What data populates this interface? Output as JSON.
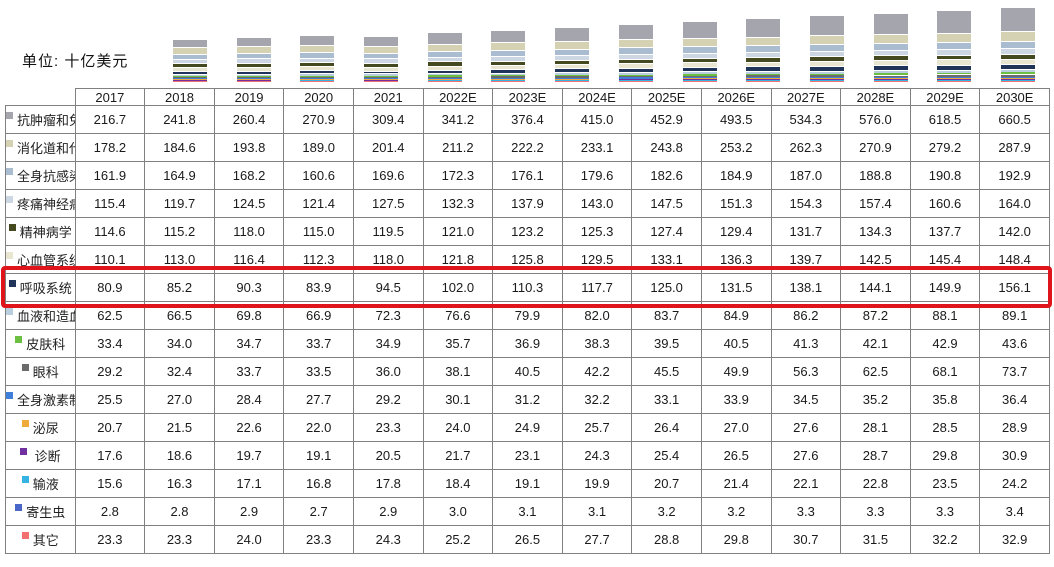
{
  "unit_label": "单位: 十亿美元",
  "highlight": {
    "series": "呼吸系统",
    "color": "#e0151b"
  },
  "chart_data": {
    "type": "bar",
    "stacked": true,
    "title": "",
    "unit": "十亿美元",
    "legend_position": "table-rows-left",
    "x": [
      "2017",
      "2018",
      "2019",
      "2020",
      "2021",
      "2022E",
      "2023E",
      "2024E",
      "2025E",
      "2026E",
      "2027E",
      "2028E",
      "2029E",
      "2030E"
    ],
    "series": [
      {
        "name": "抗肿瘤和免疫调节剂",
        "color": "#a5a5ad",
        "values": [
          216.7,
          241.8,
          260.4,
          270.9,
          309.4,
          341.2,
          376.4,
          415.0,
          452.9,
          493.5,
          534.3,
          576.0,
          618.5,
          660.5
        ]
      },
      {
        "name": "消化道和代谢",
        "color": "#d5d2b3",
        "values": [
          178.2,
          184.6,
          193.8,
          189.0,
          201.4,
          211.2,
          222.2,
          233.1,
          243.8,
          253.2,
          262.3,
          270.9,
          279.2,
          287.9
        ]
      },
      {
        "name": "全身抗感染用药",
        "color": "#a9bcd0",
        "values": [
          161.9,
          164.9,
          168.2,
          160.6,
          169.6,
          172.3,
          176.1,
          179.6,
          182.6,
          184.9,
          187.0,
          188.8,
          190.8,
          192.9
        ]
      },
      {
        "name": "疼痛神经病学",
        "color": "#ccd7e3",
        "values": [
          115.4,
          119.7,
          124.5,
          121.4,
          127.5,
          132.3,
          137.9,
          143.0,
          147.5,
          151.3,
          154.3,
          157.4,
          160.6,
          164.0
        ]
      },
      {
        "name": "精神病学",
        "color": "#45491f",
        "values": [
          114.6,
          115.2,
          118.0,
          115.0,
          119.5,
          121.0,
          123.2,
          125.3,
          127.4,
          129.4,
          131.7,
          134.3,
          137.7,
          142.0
        ]
      },
      {
        "name": "心血管系统",
        "color": "#e8e6d0",
        "values": [
          110.1,
          113.0,
          116.4,
          112.3,
          118.0,
          121.8,
          125.8,
          129.5,
          133.1,
          136.3,
          139.7,
          142.5,
          145.4,
          148.4
        ]
      },
      {
        "name": "呼吸系统",
        "color": "#1f3458",
        "values": [
          80.9,
          85.2,
          90.3,
          83.9,
          94.5,
          102.0,
          110.3,
          117.7,
          125.0,
          131.5,
          138.1,
          144.1,
          149.9,
          156.1
        ]
      },
      {
        "name": "血液和造血器官",
        "color": "#b9cfdf",
        "values": [
          62.5,
          66.5,
          69.8,
          66.9,
          72.3,
          76.6,
          79.9,
          82.0,
          83.7,
          84.9,
          86.2,
          87.2,
          88.1,
          89.1
        ]
      },
      {
        "name": "皮肤科",
        "color": "#6cbf40",
        "values": [
          33.4,
          34.0,
          34.7,
          33.7,
          34.9,
          35.7,
          36.9,
          38.3,
          39.5,
          40.5,
          41.3,
          42.1,
          42.9,
          43.6
        ]
      },
      {
        "name": "眼科",
        "color": "#6b6b6b",
        "values": [
          29.2,
          32.4,
          33.7,
          33.5,
          36.0,
          38.1,
          40.5,
          42.2,
          45.5,
          49.9,
          56.3,
          62.5,
          68.1,
          73.7
        ]
      },
      {
        "name": "全身激素制剂",
        "color": "#3f7fd9",
        "values": [
          25.5,
          27.0,
          28.4,
          27.7,
          29.2,
          30.1,
          31.2,
          32.2,
          33.1,
          33.9,
          34.5,
          35.2,
          35.8,
          36.4
        ]
      },
      {
        "name": "泌尿",
        "color": "#eeab3c",
        "values": [
          20.7,
          21.5,
          22.6,
          22.0,
          23.3,
          24.0,
          24.9,
          25.7,
          26.4,
          27.0,
          27.6,
          28.1,
          28.5,
          28.9
        ]
      },
      {
        "name": " 诊断",
        "color": "#7030a0",
        "values": [
          17.6,
          18.6,
          19.7,
          19.1,
          20.5,
          21.7,
          23.1,
          24.3,
          25.4,
          26.5,
          27.6,
          28.7,
          29.8,
          30.9
        ]
      },
      {
        "name": "输液",
        "color": "#35b3e3",
        "values": [
          15.6,
          16.3,
          17.1,
          16.8,
          17.8,
          18.4,
          19.1,
          19.9,
          20.7,
          21.4,
          22.1,
          22.8,
          23.5,
          24.2
        ]
      },
      {
        "name": "寄生虫",
        "color": "#4a66c8",
        "values": [
          2.8,
          2.8,
          2.9,
          2.7,
          2.9,
          3.0,
          3.1,
          3.1,
          3.2,
          3.2,
          3.3,
          3.3,
          3.3,
          3.4
        ]
      },
      {
        "name": "其它",
        "color": "#f37070",
        "values": [
          23.3,
          23.3,
          24.0,
          23.3,
          24.3,
          25.2,
          26.5,
          27.7,
          28.8,
          29.8,
          30.7,
          31.5,
          32.2,
          32.9
        ]
      }
    ]
  }
}
